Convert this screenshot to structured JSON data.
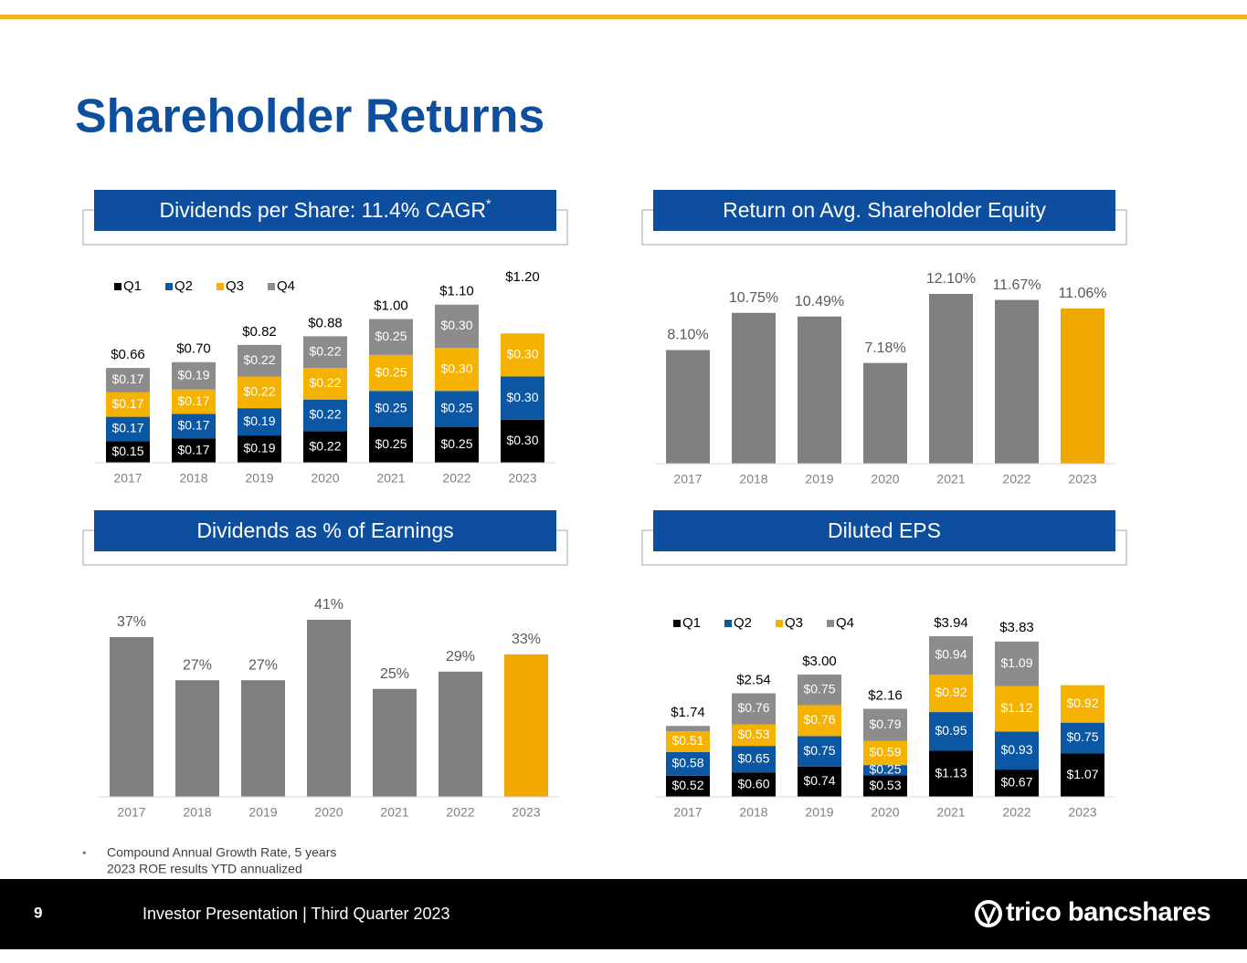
{
  "page_title": "Shareholder Returns",
  "chart_data": [
    {
      "type": "stacked_bar",
      "title": "Dividends per Share: 11.4% CAGR",
      "title_mark": "*",
      "categories": [
        "2017",
        "2018",
        "2019",
        "2020",
        "2021",
        "2022",
        "2023"
      ],
      "series": [
        {
          "name": "Q1",
          "color": "#000000",
          "values": [
            0.15,
            0.17,
            0.19,
            0.22,
            0.25,
            0.25,
            0.3
          ],
          "value_labels": [
            "$0.15",
            "$0.17",
            "$0.19",
            "$0.22",
            "$0.25",
            "$0.25",
            "$0.30"
          ]
        },
        {
          "name": "Q2",
          "color": "#0b57a4",
          "values": [
            0.17,
            0.17,
            0.19,
            0.22,
            0.25,
            0.25,
            0.3
          ],
          "value_labels": [
            "$0.17",
            "$0.17",
            "$0.19",
            "$0.22",
            "$0.25",
            "$0.25",
            "$0.30"
          ]
        },
        {
          "name": "Q3",
          "color": "#f5b200",
          "values": [
            0.17,
            0.17,
            0.22,
            0.22,
            0.25,
            0.3,
            0.3
          ],
          "value_labels": [
            "$0.17",
            "$0.17",
            "$0.22",
            "$0.22",
            "$0.25",
            "$0.30",
            "$0.30"
          ]
        },
        {
          "name": "Q4",
          "color": "#8c8c8c",
          "values": [
            0.17,
            0.19,
            0.22,
            0.22,
            0.25,
            0.3,
            null
          ],
          "value_labels": [
            "$0.17",
            "$0.19",
            "$0.22",
            "$0.22",
            "$0.25",
            "$0.30",
            null
          ]
        }
      ],
      "totals": {
        "values": [
          0.66,
          0.7,
          0.82,
          0.88,
          1.0,
          1.1,
          1.2
        ],
        "value_labels": [
          "$0.66",
          "$0.70",
          "$0.82",
          "$0.88",
          "$1.00",
          "$1.10",
          "$1.20"
        ]
      }
    },
    {
      "type": "bar",
      "title": "Return on Avg. Shareholder Equity",
      "categories": [
        "2017",
        "2018",
        "2019",
        "2020",
        "2021",
        "2022",
        "2023"
      ],
      "values": [
        8.1,
        10.75,
        10.49,
        7.18,
        12.1,
        11.67,
        11.06
      ],
      "value_labels": [
        "8.10%",
        "10.75%",
        "10.49%",
        "7.18%",
        "12.10%",
        "11.67%",
        "11.06%"
      ],
      "colors": [
        "#7f7f7f",
        "#7f7f7f",
        "#7f7f7f",
        "#7f7f7f",
        "#7f7f7f",
        "#7f7f7f",
        "#f0a800"
      ]
    },
    {
      "type": "bar",
      "title": "Dividends as % of Earnings",
      "categories": [
        "2017",
        "2018",
        "2019",
        "2020",
        "2021",
        "2022",
        "2023"
      ],
      "values": [
        37,
        27,
        27,
        41,
        25,
        29,
        33
      ],
      "value_labels": [
        "37%",
        "27%",
        "27%",
        "41%",
        "25%",
        "29%",
        "33%"
      ],
      "colors": [
        "#7f7f7f",
        "#7f7f7f",
        "#7f7f7f",
        "#7f7f7f",
        "#7f7f7f",
        "#7f7f7f",
        "#f0a800"
      ]
    },
    {
      "type": "stacked_bar",
      "title": "Diluted EPS",
      "categories": [
        "2017",
        "2018",
        "2019",
        "2020",
        "2021",
        "2022",
        "2023"
      ],
      "series": [
        {
          "name": "Q1",
          "color": "#000000",
          "values": [
            0.52,
            0.6,
            0.74,
            0.53,
            1.13,
            0.67,
            1.07
          ],
          "value_labels": [
            "$0.52",
            "$0.60",
            "$0.74",
            "$0.53",
            "$1.13",
            "$0.67",
            "$1.07"
          ]
        },
        {
          "name": "Q2",
          "color": "#0b57a4",
          "values": [
            0.58,
            0.65,
            0.75,
            0.25,
            0.95,
            0.93,
            0.75
          ],
          "value_labels": [
            "$0.58",
            "$0.65",
            "$0.75",
            "$0.25",
            "$0.95",
            "$0.93",
            "$0.75"
          ]
        },
        {
          "name": "Q3",
          "color": "#f5b200",
          "values": [
            0.51,
            0.53,
            0.76,
            0.59,
            0.92,
            1.12,
            0.92
          ],
          "value_labels": [
            "$0.51",
            "$0.53",
            "$0.76",
            "$0.59",
            "$0.92",
            "$1.12",
            "$0.92"
          ]
        },
        {
          "name": "Q4",
          "color": "#8c8c8c",
          "values": [
            0.13,
            0.76,
            0.75,
            0.79,
            0.94,
            1.09,
            null
          ],
          "value_labels": [
            null,
            "$0.76",
            "$0.75",
            "$0.79",
            "$0.94",
            "$1.09",
            null
          ]
        }
      ],
      "totals": {
        "values": [
          1.74,
          2.54,
          3.0,
          2.16,
          3.94,
          3.83,
          null
        ],
        "value_labels": [
          "$1.74",
          "$2.54",
          "$3.00",
          "$2.16",
          "$3.94",
          "$3.83",
          null
        ]
      }
    }
  ],
  "footnotes": [
    "Compound Annual Growth Rate, 5 years",
    "2023 ROE results YTD annualized"
  ],
  "footer": {
    "page_number": "9",
    "text": "Investor Presentation | Third Quarter 2023",
    "logo": "trico bancshares"
  }
}
